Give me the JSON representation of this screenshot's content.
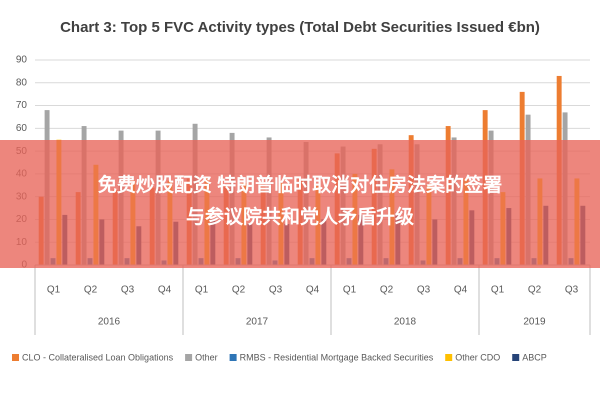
{
  "chart_data": {
    "type": "bar",
    "title": "Chart 3: Top 5 FVC Activity types (Total Debt Securities Issued €bn)",
    "groups": [
      {
        "label": "2016",
        "categories": [
          "Q1",
          "Q2",
          "Q3",
          "Q4"
        ]
      },
      {
        "label": "2017",
        "categories": [
          "Q1",
          "Q2",
          "Q3",
          "Q4"
        ]
      },
      {
        "label": "2018",
        "categories": [
          "Q1",
          "Q2",
          "Q3",
          "Q4"
        ]
      },
      {
        "label": "2019",
        "categories": [
          "Q1",
          "Q2",
          "Q3"
        ]
      }
    ],
    "series": [
      {
        "name": "CLO - Collateralised Loan Obligations",
        "color": "#ed7d31",
        "values": [
          30,
          32,
          33,
          34,
          38,
          35,
          36,
          38,
          49,
          51,
          57,
          61,
          68,
          76,
          83
        ]
      },
      {
        "name": "Other",
        "color": "#a5a5a5",
        "values": [
          68,
          61,
          59,
          59,
          62,
          58,
          56,
          54,
          52,
          53,
          53,
          56,
          59,
          66,
          67
        ]
      },
      {
        "name": "RMBS - Residential Mortgage Backed Securities",
        "color": "#2e75b6",
        "values": [
          3,
          3,
          3,
          2,
          3,
          3,
          2,
          3,
          3,
          3,
          2,
          3,
          3,
          3,
          3
        ]
      },
      {
        "name": "Other CDO",
        "color": "#ffc000",
        "values": [
          55,
          44,
          37,
          37,
          38,
          36,
          36,
          35,
          40,
          42,
          35,
          38,
          32,
          38,
          38
        ]
      },
      {
        "name": "ABCP",
        "color": "#264478",
        "values": [
          22,
          20,
          17,
          19,
          20,
          18,
          18,
          20,
          22,
          23,
          20,
          24,
          25,
          26,
          26
        ]
      }
    ],
    "ylim": [
      0,
      90
    ],
    "yticks": [
      0,
      10,
      20,
      30,
      40,
      50,
      60,
      70,
      80,
      90
    ],
    "grid": true,
    "legend": "bottom"
  },
  "overlay": {
    "lines": [
      "免费炒股配资 特朗普临时取消对住房法案的签署",
      "与参议院共和党人矛盾升级"
    ]
  }
}
